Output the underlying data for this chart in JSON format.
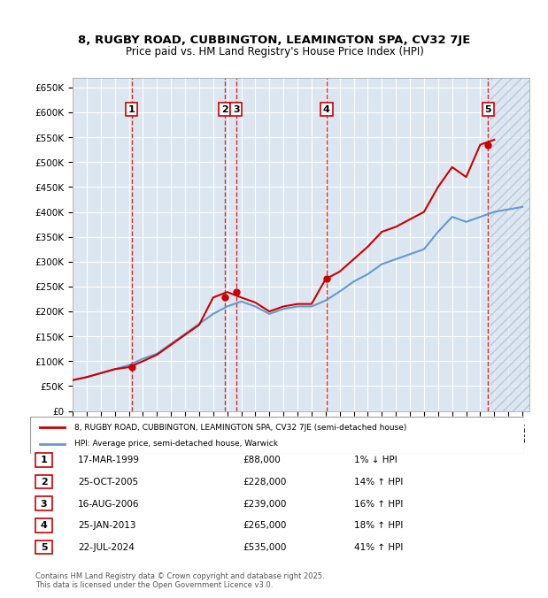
{
  "title_line1": "8, RUGBY ROAD, CUBBINGTON, LEAMINGTON SPA, CV32 7JE",
  "title_line2": "Price paid vs. HM Land Registry's House Price Index (HPI)",
  "ylabel": "",
  "ylim": [
    0,
    670000
  ],
  "yticks": [
    0,
    50000,
    100000,
    150000,
    200000,
    250000,
    300000,
    350000,
    400000,
    450000,
    500000,
    550000,
    600000,
    650000
  ],
  "xlim_start": 1995.0,
  "xlim_end": 2027.5,
  "bg_color": "#dce6f1",
  "plot_bg": "#dce6f1",
  "grid_color": "#ffffff",
  "house_line_color": "#cc0000",
  "hpi_line_color": "#6699cc",
  "sale_marker_color": "#cc0000",
  "transactions": [
    {
      "num": 1,
      "date": "17-MAR-1999",
      "price": 88000,
      "pct": "1%",
      "dir": "↓",
      "year": 1999.21
    },
    {
      "num": 2,
      "date": "25-OCT-2005",
      "price": 228000,
      "pct": "14%",
      "dir": "↑",
      "year": 2005.82
    },
    {
      "num": 3,
      "date": "16-AUG-2006",
      "price": 239000,
      "pct": "16%",
      "dir": "↑",
      "year": 2006.63
    },
    {
      "num": 4,
      "date": "25-JAN-2013",
      "price": 265000,
      "pct": "18%",
      "dir": "↑",
      "year": 2013.07
    },
    {
      "num": 5,
      "date": "22-JUL-2024",
      "price": 535000,
      "pct": "41%",
      "dir": "↑",
      "year": 2024.56
    }
  ],
  "legend_label1": "8, RUGBY ROAD, CUBBINGTON, LEAMINGTON SPA, CV32 7JE (semi-detached house)",
  "legend_label2": "HPI: Average price, semi-detached house, Warwick",
  "footer": "Contains HM Land Registry data © Crown copyright and database right 2025.\nThis data is licensed under the Open Government Licence v3.0.",
  "hpi_years": [
    1995,
    1996,
    1997,
    1998,
    1999,
    2000,
    2001,
    2002,
    2003,
    2004,
    2005,
    2006,
    2007,
    2008,
    2009,
    2010,
    2011,
    2012,
    2013,
    2014,
    2015,
    2016,
    2017,
    2018,
    2019,
    2020,
    2021,
    2022,
    2023,
    2024,
    2025,
    2026,
    2027
  ],
  "hpi_values": [
    62000,
    68000,
    76000,
    84000,
    92000,
    105000,
    115000,
    135000,
    155000,
    175000,
    195000,
    210000,
    220000,
    210000,
    195000,
    205000,
    210000,
    210000,
    222000,
    240000,
    260000,
    275000,
    295000,
    305000,
    315000,
    325000,
    360000,
    390000,
    380000,
    390000,
    400000,
    405000,
    410000
  ],
  "house_years": [
    1995,
    1996,
    1997,
    1998,
    1999,
    2000,
    2001,
    2002,
    2003,
    2004,
    2005,
    2006,
    2007,
    2008,
    2009,
    2010,
    2011,
    2012,
    2013,
    2014,
    2015,
    2016,
    2017,
    2018,
    2019,
    2020,
    2021,
    2022,
    2023,
    2024,
    2025
  ],
  "house_values": [
    62000,
    68000,
    76000,
    84000,
    88000,
    100000,
    113000,
    133000,
    153000,
    173000,
    228000,
    239000,
    228000,
    218000,
    200000,
    210000,
    215000,
    215000,
    265000,
    280000,
    305000,
    330000,
    360000,
    370000,
    385000,
    400000,
    450000,
    490000,
    470000,
    535000,
    545000
  ]
}
